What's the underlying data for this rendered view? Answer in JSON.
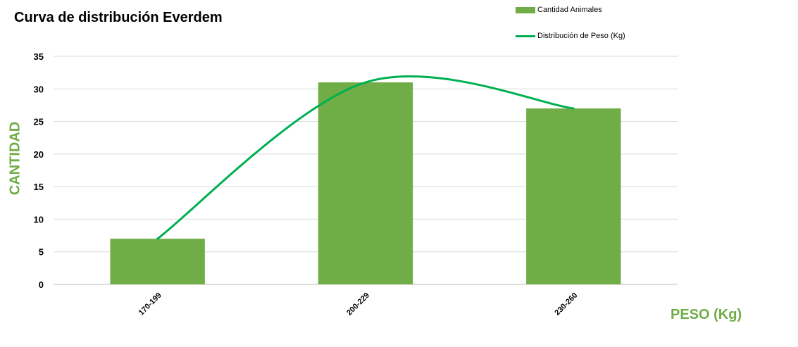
{
  "chart_data": {
    "type": "bar",
    "title": "Curva de distribución Everdem",
    "xlabel": "PESO (Kg)",
    "ylabel": "CANTIDAD",
    "categories": [
      "170-199",
      "200-229",
      "230-260"
    ],
    "series": [
      {
        "name": "Cantidad Animales",
        "type": "bar",
        "values": [
          7,
          31,
          27
        ],
        "color": "#70AD47"
      },
      {
        "name": "Distribución de Peso (Kg)",
        "type": "line",
        "smooth": true,
        "values": [
          7,
          31,
          27
        ],
        "color": "#00B050"
      }
    ],
    "ylim": [
      0,
      35
    ],
    "yticks": [
      0,
      5,
      10,
      15,
      20,
      25,
      30,
      35
    ],
    "grid": true,
    "legend_position": "top-right"
  }
}
